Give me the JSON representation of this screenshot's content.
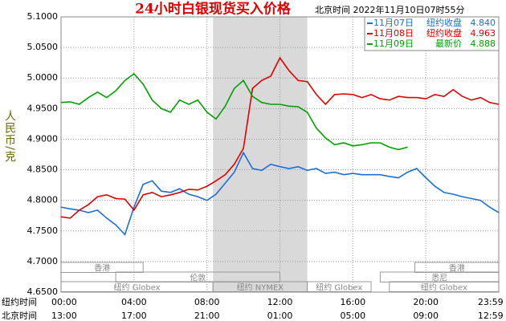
{
  "chart_data": {
    "type": "line",
    "title": "24小时白银现货买入价格",
    "subtitle": "北京时间 2022年11月10日07时55分",
    "y_label": "人民币/克",
    "x_row_labels": [
      "纽约时间",
      "北京时间"
    ],
    "xlim": [
      0,
      24
    ],
    "ylim": [
      4.65,
      5.1
    ],
    "yticks": [
      {
        "value": 4.65,
        "label": "4.6500"
      },
      {
        "value": 4.7,
        "label": "4.7000"
      },
      {
        "value": 4.75,
        "label": "4.7500"
      },
      {
        "value": 4.8,
        "label": "4.8000"
      },
      {
        "value": 4.85,
        "label": "4.8500"
      },
      {
        "value": 4.9,
        "label": "4.9000"
      },
      {
        "value": 4.95,
        "label": "4.9500"
      },
      {
        "value": 5.0,
        "label": "5.0000"
      },
      {
        "value": 5.05,
        "label": "5.0500"
      },
      {
        "value": 5.1,
        "label": "5.1000"
      }
    ],
    "xticks": [
      {
        "value": 0,
        "label": "00:00"
      },
      {
        "value": 4,
        "label": "04:00"
      },
      {
        "value": 8,
        "label": "08:00"
      },
      {
        "value": 12,
        "label": "12:00"
      },
      {
        "value": 16,
        "label": "16:00"
      },
      {
        "value": 20,
        "label": "20:00"
      },
      {
        "value": 23.983,
        "label": "23:59"
      }
    ],
    "x2ticks": [
      {
        "value": 0,
        "label": "13:00"
      },
      {
        "value": 4,
        "label": "17:00"
      },
      {
        "value": 8,
        "label": "21:00"
      },
      {
        "value": 12,
        "label": "01:00"
      },
      {
        "value": 16,
        "label": "05:00"
      },
      {
        "value": 20,
        "label": "09:00"
      },
      {
        "value": 23.983,
        "label": "12:59"
      }
    ],
    "grid": true,
    "x": [
      0,
      0.5,
      1,
      1.5,
      2,
      2.5,
      3,
      3.5,
      4,
      4.5,
      5,
      5.5,
      6,
      6.5,
      7,
      7.5,
      8,
      8.5,
      9,
      9.5,
      10,
      10.5,
      11,
      11.5,
      12,
      12.5,
      13,
      13.5,
      14,
      14.5,
      15,
      15.5,
      16,
      16.5,
      17,
      17.5,
      18,
      18.5,
      19,
      19.5,
      20,
      20.5,
      21,
      21.5,
      22,
      22.5,
      23,
      23.5,
      24
    ],
    "series": [
      {
        "name": "11月07日",
        "note": "纽约收盘",
        "last": {
          "value": 4.84,
          "label": "4.840"
        },
        "color": "#1a6fd8",
        "values": [
          4.789,
          4.786,
          4.784,
          4.78,
          4.784,
          4.771,
          4.76,
          4.744,
          4.789,
          4.826,
          4.832,
          4.815,
          4.813,
          4.819,
          4.81,
          4.806,
          4.8,
          4.81,
          4.828,
          4.846,
          4.878,
          4.852,
          4.849,
          4.859,
          4.855,
          4.852,
          4.855,
          4.849,
          4.852,
          4.844,
          4.846,
          4.842,
          4.844,
          4.842,
          4.842,
          4.842,
          4.839,
          4.837,
          4.846,
          4.852,
          4.837,
          4.823,
          4.813,
          4.81,
          4.806,
          4.803,
          4.8,
          4.789,
          4.78
        ]
      },
      {
        "name": "11月08日",
        "note": "纽约收盘",
        "last": {
          "value": 4.963,
          "label": "4.963"
        },
        "color": "#e00000",
        "values": [
          4.773,
          4.771,
          4.784,
          4.793,
          4.806,
          4.809,
          4.803,
          4.802,
          4.784,
          4.809,
          4.813,
          4.806,
          4.809,
          4.813,
          4.818,
          4.817,
          4.823,
          4.832,
          4.842,
          4.859,
          4.885,
          4.983,
          4.996,
          5.003,
          5.033,
          5.012,
          4.996,
          4.994,
          4.973,
          4.957,
          4.973,
          4.974,
          4.973,
          4.968,
          4.973,
          4.966,
          4.964,
          4.97,
          4.968,
          4.968,
          4.966,
          4.973,
          4.97,
          4.981,
          4.97,
          4.964,
          4.968,
          4.96,
          4.957
        ]
      },
      {
        "name": "11月09日",
        "note": "最新价",
        "last": {
          "value": 4.888,
          "label": "4.888"
        },
        "color": "#00a000",
        "values": [
          4.96,
          4.961,
          4.957,
          4.968,
          4.977,
          4.968,
          4.979,
          4.996,
          5.007,
          4.99,
          4.964,
          4.95,
          4.944,
          4.964,
          4.957,
          4.964,
          4.944,
          4.933,
          4.954,
          4.983,
          4.996,
          4.97,
          4.96,
          4.957,
          4.957,
          4.954,
          4.953,
          4.944,
          4.918,
          4.902,
          4.891,
          4.894,
          4.889,
          4.891,
          4.894,
          4.894,
          4.887,
          4.883,
          4.887,
          null,
          null,
          null,
          null,
          null,
          null,
          null,
          null,
          null,
          null
        ]
      }
    ],
    "sessions": [
      {
        "label": "香港",
        "start": 0,
        "end": 4.5,
        "row": 0
      },
      {
        "label": "香港",
        "start": 19.4,
        "end": 24,
        "row": 0
      },
      {
        "label": "伦敦",
        "start": 3,
        "end": 12,
        "row": 1
      },
      {
        "label": "悉尼",
        "start": 17.5,
        "end": 24,
        "row": 1
      },
      {
        "label": "纽约 Globex",
        "start": 0,
        "end": 8.33,
        "row": 2
      },
      {
        "label": "纽约 NYMEX",
        "start": 8.33,
        "end": 13.5,
        "row": 2,
        "shade": true
      },
      {
        "label": "纽约 Globex",
        "start": 13.5,
        "end": 17,
        "row": 2
      },
      {
        "label": "纽约 Globex",
        "start": 18,
        "end": 24,
        "row": 2
      }
    ]
  }
}
